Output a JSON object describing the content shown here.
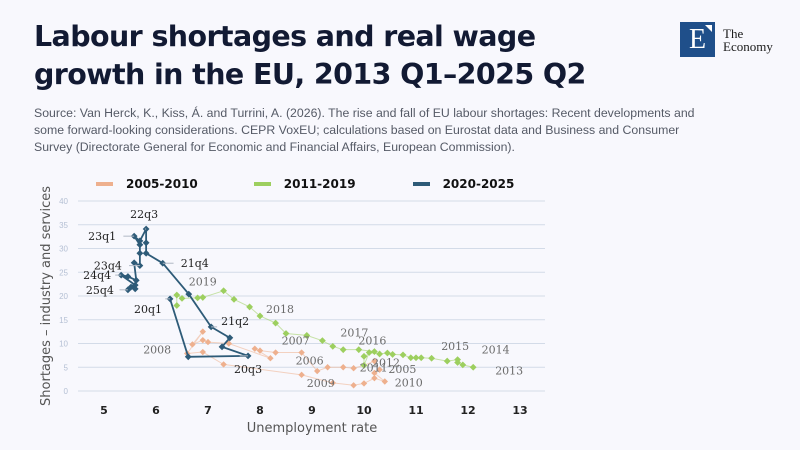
{
  "header": {
    "title": "Labour shortages and real wage growth in the EU, 2013 Q1–2025 Q2",
    "logo_letter": "E",
    "logo_line1": "The",
    "logo_line2": "Economy",
    "source": "Source: Van Herck, K., Kiss, Á. and Turrini, A. (2026). The rise and fall of EU labour shortages: Recent developments and some forward-looking considerations. CEPR VoxEU; calculations based on Eurostat data and Business and Consumer Survey (Directorate General for Economic and Financial Affairs, European Commission)."
  },
  "chart_data": {
    "type": "scatter",
    "title": "",
    "xlabel": "Unemployment rate",
    "ylabel": "Shortages – industry and services",
    "xlim": [
      4.5,
      13.5
    ],
    "ylim": [
      0,
      40
    ],
    "xticks": [
      5,
      6,
      7,
      8,
      9,
      10,
      11,
      12,
      13
    ],
    "yticks": [
      0,
      5,
      10,
      15,
      20,
      25,
      30,
      35,
      40
    ],
    "grid": "horizontal",
    "legend_position": "top",
    "series": [
      {
        "name": "2005-2010",
        "color": "#eeb08e",
        "points": [
          {
            "x": 10.2,
            "y": 6.3,
            "label": "2005"
          },
          {
            "x": 10.0,
            "y": 5.4
          },
          {
            "x": 9.8,
            "y": 4.8
          },
          {
            "x": 9.6,
            "y": 5.0
          },
          {
            "x": 9.3,
            "y": 5.0,
            "label": "2006"
          },
          {
            "x": 9.1,
            "y": 4.2
          },
          {
            "x": 8.8,
            "y": 8.1
          },
          {
            "x": 8.3,
            "y": 8.1,
            "label": "2007"
          },
          {
            "x": 8.0,
            "y": 8.5
          },
          {
            "x": 7.9,
            "y": 8.9
          },
          {
            "x": 8.2,
            "y": 6.9
          },
          {
            "x": 7.4,
            "y": 10.0
          },
          {
            "x": 7.0,
            "y": 10.3
          },
          {
            "x": 6.9,
            "y": 10.7
          },
          {
            "x": 6.7,
            "y": 9.8
          },
          {
            "x": 6.9,
            "y": 12.5
          },
          {
            "x": 6.6,
            "y": 7.9,
            "label": "2008"
          },
          {
            "x": 6.9,
            "y": 8.2
          },
          {
            "x": 7.3,
            "y": 5.6
          },
          {
            "x": 8.8,
            "y": 3.4
          },
          {
            "x": 9.4,
            "y": 1.7,
            "label": "2009"
          },
          {
            "x": 9.8,
            "y": 1.2
          },
          {
            "x": 10.0,
            "y": 1.6
          },
          {
            "x": 10.2,
            "y": 2.7
          },
          {
            "x": 10.4,
            "y": 2.0,
            "label": "2010"
          },
          {
            "x": 10.2,
            "y": 3.8
          },
          {
            "x": 10.3,
            "y": 4.5,
            "label": "2011"
          }
        ]
      },
      {
        "name": "2011-2019",
        "color": "#9dcf5f",
        "points": [
          {
            "x": 12.1,
            "y": 5.0,
            "label": "2013"
          },
          {
            "x": 11.9,
            "y": 5.5
          },
          {
            "x": 11.8,
            "y": 6.0
          },
          {
            "x": 11.8,
            "y": 6.6,
            "label": "2014"
          },
          {
            "x": 11.6,
            "y": 6.3
          },
          {
            "x": 11.3,
            "y": 6.9
          },
          {
            "x": 11.1,
            "y": 7.0,
            "label": "2015"
          },
          {
            "x": 11.0,
            "y": 7.0
          },
          {
            "x": 10.9,
            "y": 7.0
          },
          {
            "x": 10.75,
            "y": 7.6
          },
          {
            "x": 10.55,
            "y": 7.7
          },
          {
            "x": 10.45,
            "y": 8.0
          },
          {
            "x": 10.3,
            "y": 7.8
          },
          {
            "x": 10.1,
            "y": 8.1
          },
          {
            "x": 10.0,
            "y": 5.4,
            "label": "2012"
          },
          {
            "x": 10.0,
            "y": 7.3
          },
          {
            "x": 10.2,
            "y": 8.3,
            "label": "2016"
          },
          {
            "x": 9.9,
            "y": 8.7
          },
          {
            "x": 9.6,
            "y": 8.7
          },
          {
            "x": 9.4,
            "y": 9.4
          },
          {
            "x": 9.2,
            "y": 10.6,
            "label": "2017"
          },
          {
            "x": 8.9,
            "y": 11.7
          },
          {
            "x": 8.5,
            "y": 12.1
          },
          {
            "x": 8.3,
            "y": 14.3
          },
          {
            "x": 8.0,
            "y": 15.8,
            "label": "2018"
          },
          {
            "x": 7.8,
            "y": 17.7
          },
          {
            "x": 7.5,
            "y": 19.3
          },
          {
            "x": 7.3,
            "y": 21.1
          },
          {
            "x": 6.9,
            "y": 19.7,
            "label": "2019"
          },
          {
            "x": 6.8,
            "y": 19.6
          },
          {
            "x": 6.5,
            "y": 19.5
          },
          {
            "x": 6.4,
            "y": 20.2
          },
          {
            "x": 6.4,
            "y": 18.0
          }
        ]
      },
      {
        "name": "2020-2025",
        "color": "#2e5b78",
        "points": [
          {
            "x": 6.27,
            "y": 19.4,
            "label": "20q1"
          },
          {
            "x": 6.62,
            "y": 7.2
          },
          {
            "x": 7.77,
            "y": 7.4,
            "label": "20q3"
          },
          {
            "x": 7.27,
            "y": 9.3
          },
          {
            "x": 7.42,
            "y": 11.2
          },
          {
            "x": 7.06,
            "y": 13.5,
            "label": "21q2"
          },
          {
            "x": 6.63,
            "y": 20.4
          },
          {
            "x": 6.13,
            "y": 26.9,
            "label": "21q4"
          },
          {
            "x": 5.81,
            "y": 29.0
          },
          {
            "x": 5.81,
            "y": 31.2
          },
          {
            "x": 5.81,
            "y": 34.1,
            "label": "22q3"
          },
          {
            "x": 5.69,
            "y": 31.6
          },
          {
            "x": 5.58,
            "y": 32.6,
            "label": "23q1"
          },
          {
            "x": 5.69,
            "y": 30.8
          },
          {
            "x": 5.69,
            "y": 29.0
          },
          {
            "x": 5.69,
            "y": 26.4,
            "label": "23q4"
          },
          {
            "x": 5.58,
            "y": 27.0
          },
          {
            "x": 5.62,
            "y": 23.3
          },
          {
            "x": 5.46,
            "y": 24.1
          },
          {
            "x": 5.33,
            "y": 24.4,
            "label": "24q4"
          },
          {
            "x": 5.6,
            "y": 22.3
          },
          {
            "x": 5.6,
            "y": 21.5
          },
          {
            "x": 5.52,
            "y": 21.9
          },
          {
            "x": 5.46,
            "y": 21.3,
            "label": "25q4"
          }
        ]
      }
    ]
  }
}
